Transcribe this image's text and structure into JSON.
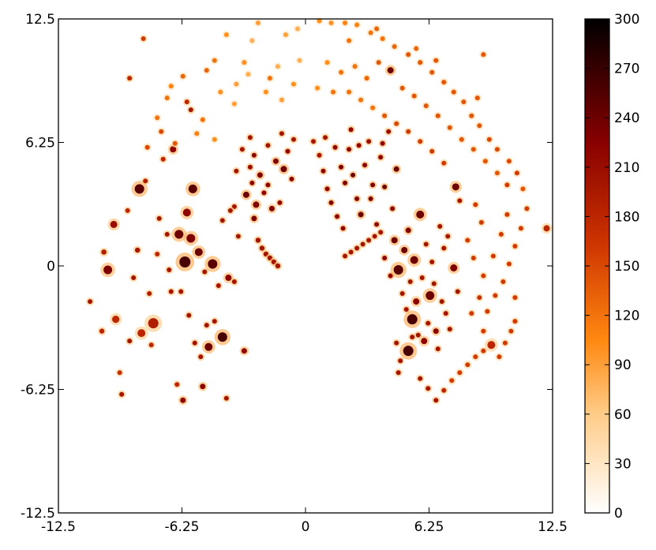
{
  "chart_data": {
    "type": "scatter",
    "title": "",
    "xlabel": "",
    "ylabel": "",
    "xlim": [
      -12.5,
      12.5
    ],
    "ylim": [
      -12.5,
      12.5
    ],
    "x_ticks": [
      "-12.5",
      "-6.25",
      "0",
      "6.25",
      "12.5"
    ],
    "y_ticks": [
      "12.5",
      "6.25",
      "0",
      "-6.25",
      "-12.5"
    ],
    "colorbar": {
      "range": [
        0,
        300
      ],
      "ticks": [
        "300",
        "270",
        "240",
        "210",
        "180",
        "150",
        "120",
        "90",
        "60",
        "30",
        "0"
      ],
      "colormap": "gist_heat_r",
      "stops": [
        "#ffffff",
        "#ffcc88",
        "#ff8811",
        "#cc3300",
        "#880000",
        "#000000"
      ]
    },
    "grid": false,
    "points": [
      [
        -10.9,
        -1.8,
        3.0,
        200
      ],
      [
        -10.3,
        -3.3,
        3.2,
        180
      ],
      [
        -10.2,
        0.7,
        3.3,
        190
      ],
      [
        -10.0,
        -0.2,
        5.5,
        230
      ],
      [
        -9.7,
        2.1,
        4.5,
        210
      ],
      [
        -9.6,
        -2.7,
        4.6,
        180
      ],
      [
        -9.4,
        -5.4,
        3.0,
        170
      ],
      [
        -9.3,
        -6.5,
        3.0,
        200
      ],
      [
        -9.0,
        2.8,
        3.0,
        180
      ],
      [
        -8.9,
        -3.8,
        3.0,
        200
      ],
      [
        -8.7,
        -0.6,
        3.0,
        200
      ],
      [
        -8.5,
        0.8,
        3.2,
        200
      ],
      [
        -8.4,
        3.9,
        6.0,
        250
      ],
      [
        -8.3,
        -3.4,
        5.0,
        180
      ],
      [
        -8.1,
        4.3,
        3.0,
        190
      ],
      [
        -7.9,
        -1.4,
        3.0,
        190
      ],
      [
        -7.8,
        -4.0,
        3.0,
        180
      ],
      [
        -7.7,
        -2.9,
        6.5,
        190
      ],
      [
        -7.5,
        0.6,
        3.0,
        180
      ],
      [
        -7.4,
        2.4,
        3.0,
        200
      ],
      [
        -7.2,
        5.4,
        3.0,
        180
      ],
      [
        -7.0,
        1.6,
        3.0,
        200
      ],
      [
        -6.9,
        -0.2,
        3.0,
        200
      ],
      [
        -6.8,
        -1.3,
        3.0,
        200
      ],
      [
        -6.7,
        5.9,
        4.0,
        220
      ],
      [
        -6.5,
        -6.0,
        3.0,
        180
      ],
      [
        -6.4,
        1.6,
        5.6,
        240
      ],
      [
        -6.3,
        -1.3,
        3.0,
        200
      ],
      [
        -6.2,
        -6.8,
        3.5,
        220
      ],
      [
        -6.1,
        0.2,
        7.0,
        260
      ],
      [
        -6.0,
        2.7,
        5.0,
        220
      ],
      [
        -5.9,
        -2.5,
        3.0,
        200
      ],
      [
        -5.8,
        1.4,
        5.5,
        230
      ],
      [
        -5.7,
        3.9,
        5.5,
        250
      ],
      [
        -5.6,
        -3.9,
        3.0,
        200
      ],
      [
        -5.4,
        0.7,
        5.0,
        240
      ],
      [
        -5.3,
        -4.6,
        3.0,
        200
      ],
      [
        -5.2,
        -6.1,
        3.5,
        220
      ],
      [
        -5.1,
        -0.3,
        3.0,
        200
      ],
      [
        -5.0,
        -3.0,
        3.0,
        200
      ],
      [
        -4.9,
        -4.1,
        5.0,
        240
      ],
      [
        -4.7,
        0.1,
        6.0,
        250
      ],
      [
        -4.6,
        -2.8,
        3.0,
        200
      ],
      [
        -4.4,
        -1.0,
        3.0,
        200
      ],
      [
        -4.2,
        -3.6,
        6.0,
        260
      ],
      [
        -4.0,
        -6.7,
        3.0,
        200
      ],
      [
        -3.9,
        -0.6,
        4.0,
        220
      ],
      [
        -3.6,
        -0.8,
        3.0,
        200
      ],
      [
        -3.1,
        -4.3,
        3.5,
        220
      ],
      [
        -3.0,
        3.6,
        4.0,
        240
      ],
      [
        -2.8,
        5.0,
        3.0,
        210
      ],
      [
        -2.7,
        4.2,
        3.0,
        220
      ],
      [
        -2.6,
        2.4,
        3.5,
        230
      ],
      [
        -2.4,
        1.3,
        3.2,
        200
      ],
      [
        -2.2,
        0.9,
        3.2,
        200
      ],
      [
        -2.0,
        0.6,
        3.2,
        200
      ],
      [
        -1.8,
        0.4,
        3.2,
        200
      ],
      [
        -1.6,
        0.2,
        3.2,
        200
      ],
      [
        -1.4,
        0.0,
        3.2,
        200
      ],
      [
        -2.5,
        3.1,
        4.0,
        230
      ],
      [
        -2.3,
        4.6,
        3.5,
        230
      ],
      [
        -2.1,
        3.7,
        3.0,
        220
      ],
      [
        -1.9,
        4.1,
        3.0,
        220
      ],
      [
        -1.7,
        2.9,
        3.5,
        230
      ],
      [
        -1.5,
        5.3,
        3.5,
        230
      ],
      [
        -1.3,
        3.2,
        3.0,
        220
      ],
      [
        -1.1,
        4.9,
        4.0,
        240
      ],
      [
        -0.9,
        5.8,
        3.0,
        220
      ],
      [
        -0.7,
        4.4,
        3.0,
        220
      ],
      [
        -1.9,
        6.1,
        3.0,
        200
      ],
      [
        -2.6,
        5.6,
        3.0,
        220
      ],
      [
        -3.2,
        5.9,
        3.0,
        200
      ],
      [
        -3.5,
        4.8,
        3.0,
        200
      ],
      [
        -0.6,
        6.4,
        3.0,
        200
      ],
      [
        -1.2,
        6.7,
        3.0,
        200
      ],
      [
        -2.8,
        6.5,
        3.0,
        200
      ],
      [
        -3.6,
        3.0,
        3.0,
        200
      ],
      [
        -4.2,
        2.3,
        3.0,
        200
      ],
      [
        -3.4,
        1.5,
        3.0,
        200
      ],
      [
        -3.8,
        2.8,
        3.0,
        200
      ],
      [
        -8.9,
        9.5,
        3.0,
        180
      ],
      [
        -8.2,
        11.5,
        3.0,
        160
      ],
      [
        -7.5,
        7.5,
        3.0,
        120
      ],
      [
        -7.0,
        8.5,
        3.0,
        120
      ],
      [
        -6.8,
        9.1,
        3.0,
        110
      ],
      [
        -6.2,
        9.6,
        3.0,
        130
      ],
      [
        -5.8,
        7.9,
        3.0,
        200
      ],
      [
        -5.2,
        7.4,
        3.0,
        120
      ],
      [
        -5.0,
        9.9,
        3.0,
        130
      ],
      [
        -4.6,
        10.4,
        3.0,
        120
      ],
      [
        -4.0,
        11.7,
        3.0,
        100
      ],
      [
        -3.5,
        9.2,
        3.0,
        90
      ],
      [
        -3.1,
        10.3,
        3.0,
        100
      ],
      [
        -2.7,
        11.4,
        3.0,
        80
      ],
      [
        -2.4,
        12.3,
        3.0,
        90
      ],
      [
        -1.8,
        9.5,
        3.0,
        120
      ],
      [
        -1.4,
        10.1,
        3.0,
        80
      ],
      [
        -1.0,
        11.7,
        3.0,
        90
      ],
      [
        -0.6,
        9.2,
        3.0,
        100
      ],
      [
        -0.4,
        12.0,
        3.0,
        80
      ],
      [
        -6.6,
        6.2,
        3.0,
        140
      ],
      [
        -7.3,
        6.8,
        3.0,
        150
      ],
      [
        -8.0,
        6.0,
        3.0,
        150
      ],
      [
        -6.0,
        8.3,
        3.0,
        180
      ],
      [
        -5.5,
        6.7,
        3.0,
        110
      ],
      [
        -4.6,
        6.4,
        3.0,
        100
      ],
      [
        -4.3,
        8.8,
        3.0,
        100
      ],
      [
        -3.6,
        8.2,
        3.0,
        90
      ],
      [
        -2.9,
        9.7,
        3.0,
        80
      ],
      [
        -2.0,
        8.8,
        3.0,
        100
      ],
      [
        -1.2,
        8.4,
        3.0,
        90
      ],
      [
        -0.3,
        10.4,
        3.0,
        80
      ],
      [
        0.4,
        6.3,
        3.0,
        200
      ],
      [
        0.7,
        5.6,
        3.0,
        200
      ],
      [
        0.9,
        4.8,
        3.0,
        220
      ],
      [
        1.1,
        3.9,
        3.0,
        220
      ],
      [
        1.3,
        3.2,
        3.0,
        230
      ],
      [
        1.6,
        2.5,
        3.0,
        220
      ],
      [
        1.9,
        1.9,
        3.0,
        220
      ],
      [
        2.2,
        5.9,
        3.0,
        220
      ],
      [
        2.4,
        4.6,
        3.0,
        240
      ],
      [
        2.6,
        3.4,
        3.0,
        230
      ],
      [
        2.8,
        2.6,
        3.5,
        240
      ],
      [
        3.0,
        5.1,
        3.0,
        220
      ],
      [
        3.2,
        6.3,
        3.0,
        210
      ],
      [
        3.4,
        4.1,
        3.0,
        230
      ],
      [
        3.6,
        2.1,
        3.0,
        220
      ],
      [
        3.8,
        5.5,
        3.0,
        220
      ],
      [
        4.0,
        4.0,
        3.0,
        240
      ],
      [
        4.2,
        6.8,
        3.0,
        210
      ],
      [
        4.4,
        2.9,
        3.0,
        220
      ],
      [
        4.6,
        4.9,
        3.5,
        240
      ],
      [
        1.0,
        6.5,
        3.0,
        200
      ],
      [
        1.5,
        6.0,
        3.0,
        220
      ],
      [
        1.8,
        5.0,
        3.0,
        230
      ],
      [
        2.0,
        4.2,
        3.0,
        230
      ],
      [
        2.3,
        6.9,
        3.0,
        220
      ],
      [
        2.7,
        6.1,
        3.0,
        220
      ],
      [
        3.3,
        3.4,
        3.0,
        230
      ],
      [
        3.9,
        6.2,
        3.0,
        220
      ],
      [
        2.0,
        0.5,
        3.0,
        200
      ],
      [
        2.3,
        0.7,
        3.0,
        200
      ],
      [
        2.6,
        0.9,
        3.0,
        200
      ],
      [
        2.9,
        1.1,
        3.0,
        200
      ],
      [
        3.2,
        1.3,
        3.0,
        200
      ],
      [
        3.5,
        1.5,
        3.0,
        200
      ],
      [
        3.8,
        1.7,
        3.0,
        200
      ],
      [
        4.0,
        0.4,
        3.0,
        220
      ],
      [
        4.3,
        -0.5,
        3.0,
        220
      ],
      [
        4.5,
        1.3,
        4.0,
        240
      ],
      [
        4.7,
        -0.2,
        6.0,
        250
      ],
      [
        4.9,
        -1.4,
        3.0,
        200
      ],
      [
        5.0,
        0.8,
        4.0,
        240
      ],
      [
        5.1,
        -2.2,
        3.0,
        200
      ],
      [
        5.2,
        1.8,
        3.5,
        230
      ],
      [
        5.3,
        -0.8,
        3.0,
        200
      ],
      [
        5.4,
        -2.7,
        6.5,
        260
      ],
      [
        5.5,
        0.3,
        5.0,
        240
      ],
      [
        5.6,
        -1.8,
        4.0,
        220
      ],
      [
        5.7,
        -3.5,
        3.0,
        200
      ],
      [
        5.8,
        2.6,
        5.0,
        240
      ],
      [
        5.9,
        -0.6,
        3.0,
        200
      ],
      [
        6.0,
        -3.8,
        4.0,
        220
      ],
      [
        6.1,
        1.1,
        3.0,
        200
      ],
      [
        6.2,
        -2.9,
        3.0,
        200
      ],
      [
        6.3,
        -1.5,
        5.5,
        240
      ],
      [
        6.4,
        0.2,
        3.0,
        200
      ],
      [
        6.5,
        -0.9,
        3.0,
        200
      ],
      [
        6.6,
        -3.3,
        3.5,
        220
      ],
      [
        6.7,
        -4.2,
        3.0,
        200
      ],
      [
        6.8,
        2.0,
        3.0,
        200
      ],
      [
        6.9,
        -1.8,
        3.0,
        200
      ],
      [
        7.0,
        0.9,
        3.0,
        200
      ],
      [
        7.1,
        -2.4,
        3.0,
        200
      ],
      [
        7.2,
        1.5,
        3.0,
        200
      ],
      [
        7.3,
        -3.2,
        3.0,
        200
      ],
      [
        7.5,
        -0.1,
        4.5,
        230
      ],
      [
        7.6,
        4.0,
        4.5,
        240
      ],
      [
        7.7,
        -1.3,
        3.0,
        200
      ],
      [
        7.8,
        3.3,
        3.0,
        200
      ],
      [
        5.2,
        -4.3,
        6.5,
        260
      ],
      [
        5.4,
        -3.6,
        3.0,
        200
      ],
      [
        4.8,
        -4.8,
        3.0,
        200
      ],
      [
        4.6,
        -3.9,
        3.0,
        200
      ],
      [
        4.7,
        -5.4,
        3.0,
        200
      ],
      [
        5.8,
        -5.7,
        3.0,
        200
      ],
      [
        6.2,
        -6.2,
        3.0,
        200
      ],
      [
        6.6,
        -6.8,
        3.0,
        200
      ],
      [
        7.0,
        -6.3,
        3.0,
        180
      ],
      [
        7.4,
        -5.8,
        3.0,
        160
      ],
      [
        7.8,
        -5.4,
        3.0,
        160
      ],
      [
        8.2,
        -5.0,
        3.0,
        160
      ],
      [
        8.6,
        -4.6,
        3.0,
        160
      ],
      [
        9.0,
        -4.3,
        3.0,
        160
      ],
      [
        9.4,
        -4.0,
        5.0,
        180
      ],
      [
        9.8,
        -4.6,
        3.0,
        160
      ],
      [
        10.1,
        -3.9,
        3.0,
        160
      ],
      [
        10.4,
        -3.3,
        3.0,
        160
      ],
      [
        10.6,
        -2.8,
        3.0,
        160
      ],
      [
        9.0,
        -3.3,
        3.0,
        160
      ],
      [
        8.4,
        -2.4,
        3.0,
        160
      ],
      [
        8.8,
        -1.6,
        3.0,
        170
      ],
      [
        9.2,
        -2.3,
        3.0,
        160
      ],
      [
        9.6,
        -1.5,
        3.0,
        160
      ],
      [
        10.0,
        -0.8,
        3.0,
        160
      ],
      [
        10.3,
        0.1,
        3.0,
        160
      ],
      [
        10.6,
        1.0,
        3.0,
        160
      ],
      [
        10.9,
        1.9,
        3.0,
        160
      ],
      [
        11.2,
        2.9,
        3.0,
        160
      ],
      [
        12.2,
        1.9,
        4.0,
        180
      ],
      [
        11.0,
        3.9,
        3.0,
        140
      ],
      [
        10.7,
        4.7,
        3.0,
        160
      ],
      [
        10.3,
        5.3,
        3.0,
        150
      ],
      [
        9.7,
        5.9,
        3.0,
        150
      ],
      [
        9.3,
        6.4,
        3.0,
        150
      ],
      [
        8.8,
        7.1,
        3.0,
        140
      ],
      [
        8.4,
        7.6,
        3.0,
        140
      ],
      [
        8.0,
        8.3,
        3.0,
        140
      ],
      [
        7.5,
        8.8,
        3.0,
        140
      ],
      [
        7.0,
        9.3,
        3.0,
        140
      ],
      [
        6.4,
        9.8,
        3.0,
        140
      ],
      [
        5.8,
        10.3,
        3.0,
        140
      ],
      [
        5.2,
        10.7,
        3.0,
        140
      ],
      [
        4.5,
        11.1,
        3.0,
        130
      ],
      [
        3.9,
        11.5,
        3.0,
        120
      ],
      [
        3.3,
        11.8,
        3.0,
        120
      ],
      [
        2.6,
        12.2,
        3.0,
        110
      ],
      [
        2.0,
        12.3,
        3.0,
        110
      ],
      [
        1.3,
        12.3,
        3.0,
        100
      ],
      [
        0.7,
        12.4,
        3.0,
        100
      ],
      [
        1.1,
        10.3,
        3.0,
        100
      ],
      [
        1.8,
        9.8,
        3.0,
        120
      ],
      [
        2.5,
        10.1,
        3.0,
        120
      ],
      [
        3.1,
        9.5,
        3.0,
        130
      ],
      [
        3.7,
        10.3,
        3.0,
        140
      ],
      [
        4.3,
        9.9,
        4.0,
        240
      ],
      [
        4.9,
        9.0,
        3.0,
        140
      ],
      [
        5.5,
        8.6,
        3.0,
        140
      ],
      [
        6.1,
        8.1,
        3.0,
        140
      ],
      [
        6.7,
        7.6,
        3.0,
        140
      ],
      [
        7.3,
        7.0,
        3.0,
        140
      ],
      [
        7.9,
        6.4,
        3.0,
        140
      ],
      [
        8.5,
        5.9,
        3.0,
        140
      ],
      [
        9.1,
        5.3,
        3.0,
        140
      ],
      [
        9.7,
        4.7,
        3.0,
        140
      ],
      [
        10.2,
        4.1,
        3.0,
        160
      ],
      [
        2.2,
        8.8,
        3.0,
        120
      ],
      [
        2.8,
        8.4,
        3.0,
        120
      ],
      [
        3.4,
        8.0,
        3.0,
        120
      ],
      [
        4.0,
        7.6,
        3.0,
        140
      ],
      [
        4.6,
        7.2,
        3.0,
        150
      ],
      [
        5.2,
        6.8,
        3.0,
        160
      ],
      [
        5.8,
        6.3,
        3.0,
        160
      ],
      [
        6.4,
        5.8,
        3.0,
        160
      ],
      [
        7.0,
        5.2,
        3.0,
        160
      ],
      [
        0.6,
        9.0,
        3.0,
        100
      ],
      [
        1.4,
        8.8,
        3.0,
        120
      ],
      [
        3.6,
        12.0,
        3.0,
        130
      ],
      [
        2.2,
        11.4,
        3.0,
        120
      ],
      [
        5.6,
        11.0,
        3.0,
        130
      ],
      [
        6.6,
        10.4,
        3.0,
        140
      ],
      [
        8.7,
        8.5,
        3.0,
        140
      ],
      [
        9.0,
        10.7,
        3.0,
        140
      ],
      [
        8.6,
        3.1,
        3.0,
        160
      ],
      [
        8.9,
        2.2,
        3.0,
        160
      ],
      [
        8.2,
        1.3,
        3.0,
        160
      ],
      [
        8.5,
        0.4,
        3.0,
        160
      ],
      [
        9.0,
        -0.5,
        3.0,
        160
      ],
      [
        9.5,
        0.5,
        3.0,
        160
      ],
      [
        9.9,
        1.6,
        3.0,
        160
      ],
      [
        10.2,
        2.6,
        3.0,
        160
      ],
      [
        10.6,
        -1.6,
        3.0,
        160
      ]
    ]
  }
}
